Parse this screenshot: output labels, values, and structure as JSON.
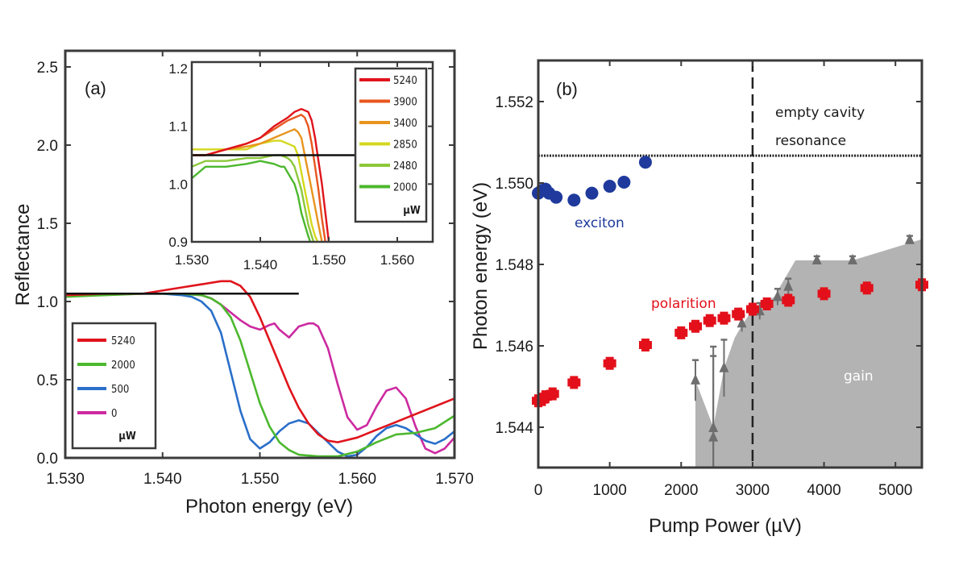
{
  "chart_data": [
    {
      "panel": "(a)",
      "type": "line",
      "title": "",
      "xlabel": "Photon energy (eV)",
      "ylabel": "Reflectance",
      "xlim": [
        1.53,
        1.57
      ],
      "ylim": [
        0.0,
        2.6
      ],
      "xticks": [
        "1.530",
        "1.540",
        "1.550",
        "1.560",
        "1.570"
      ],
      "yticks": [
        "0.0",
        "0.5",
        "1.0",
        "1.5",
        "2.0",
        "2.5"
      ],
      "reference_line": {
        "y": 1.05,
        "x": [
          1.53,
          1.554
        ],
        "color": "#111111"
      },
      "legend": {
        "placement": "bottom-left",
        "unit": "µW",
        "entries": [
          "5240",
          "2000",
          "500",
          "0"
        ]
      },
      "series": [
        {
          "name": "5240",
          "color": "#e0141c",
          "x": [
            1.53,
            1.534,
            1.538,
            1.54,
            1.542,
            1.544,
            1.546,
            1.547,
            1.548,
            1.549,
            1.55,
            1.551,
            1.552,
            1.553,
            1.554,
            1.555,
            1.556,
            1.557,
            1.558,
            1.56,
            1.562,
            1.564,
            1.566,
            1.568,
            1.57
          ],
          "y": [
            1.04,
            1.05,
            1.05,
            1.07,
            1.09,
            1.11,
            1.13,
            1.13,
            1.1,
            1.03,
            0.9,
            0.75,
            0.6,
            0.45,
            0.32,
            0.22,
            0.15,
            0.11,
            0.1,
            0.13,
            0.18,
            0.23,
            0.28,
            0.33,
            0.38
          ]
        },
        {
          "name": "2000",
          "color": "#4cb82e",
          "x": [
            1.53,
            1.534,
            1.538,
            1.54,
            1.542,
            1.544,
            1.545,
            1.546,
            1.547,
            1.548,
            1.549,
            1.55,
            1.551,
            1.552,
            1.553,
            1.554,
            1.556,
            1.558,
            1.56,
            1.562,
            1.564,
            1.566,
            1.568,
            1.57
          ],
          "y": [
            1.03,
            1.04,
            1.05,
            1.05,
            1.05,
            1.04,
            1.02,
            0.98,
            0.9,
            0.75,
            0.55,
            0.35,
            0.2,
            0.1,
            0.05,
            0.02,
            0.01,
            0.01,
            0.04,
            0.1,
            0.15,
            0.16,
            0.19,
            0.27
          ]
        },
        {
          "name": "500",
          "color": "#2a6fc9",
          "x": [
            1.53,
            1.534,
            1.538,
            1.54,
            1.542,
            1.543,
            1.544,
            1.545,
            1.546,
            1.547,
            1.548,
            1.549,
            1.55,
            1.551,
            1.552,
            1.553,
            1.554,
            1.555,
            1.556,
            1.557,
            1.558,
            1.559,
            1.56,
            1.561,
            1.562,
            1.563,
            1.564,
            1.565,
            1.566,
            1.567,
            1.568,
            1.569,
            1.57
          ],
          "y": [
            1.05,
            1.05,
            1.05,
            1.05,
            1.04,
            1.03,
            1.0,
            0.94,
            0.8,
            0.55,
            0.3,
            0.12,
            0.06,
            0.1,
            0.17,
            0.22,
            0.24,
            0.22,
            0.16,
            0.1,
            0.04,
            0.01,
            0.02,
            0.07,
            0.14,
            0.19,
            0.21,
            0.19,
            0.15,
            0.11,
            0.09,
            0.12,
            0.17
          ]
        },
        {
          "name": "0",
          "color": "#cc2aa0",
          "x": [
            1.53,
            1.534,
            1.538,
            1.54,
            1.542,
            1.544,
            1.545,
            1.546,
            1.547,
            1.548,
            1.549,
            1.55,
            1.551,
            1.5515,
            1.552,
            1.553,
            1.554,
            1.555,
            1.5555,
            1.556,
            1.557,
            1.558,
            1.559,
            1.56,
            1.561,
            1.562,
            1.563,
            1.564,
            1.565,
            1.566,
            1.567,
            1.568,
            1.569,
            1.57
          ],
          "y": [
            1.04,
            1.05,
            1.05,
            1.05,
            1.05,
            1.04,
            1.02,
            0.98,
            0.93,
            0.88,
            0.84,
            0.82,
            0.85,
            0.86,
            0.82,
            0.77,
            0.84,
            0.86,
            0.86,
            0.84,
            0.7,
            0.47,
            0.26,
            0.18,
            0.21,
            0.33,
            0.43,
            0.45,
            0.38,
            0.2,
            0.06,
            0.03,
            0.06,
            0.13
          ]
        }
      ],
      "inset": {
        "type": "line",
        "xlim": [
          1.53,
          1.5652
        ],
        "ylim": [
          0.9,
          1.2
        ],
        "xticks": [
          "1.530",
          "1.540",
          "1.550",
          "1.560"
        ],
        "yticks": [
          "0.9",
          "1.0",
          "1.1",
          "1.2"
        ],
        "reference_line": {
          "y": 1.05,
          "x": [
            1.53,
            1.5525
          ],
          "color": "#111111"
        },
        "legend": {
          "placement": "top-right",
          "unit": "µW",
          "entries": [
            "5240",
            "3900",
            "3400",
            "2850",
            "2480",
            "2000"
          ]
        },
        "series": [
          {
            "name": "5240",
            "color": "#e0141c",
            "x": [
              1.53,
              1.532,
              1.535,
              1.538,
              1.54,
              1.542,
              1.544,
              1.545,
              1.546,
              1.547,
              1.5475,
              1.548,
              1.5485,
              1.549,
              1.5495,
              1.55
            ],
            "y": [
              1.05,
              1.05,
              1.06,
              1.07,
              1.08,
              1.1,
              1.115,
              1.125,
              1.13,
              1.125,
              1.11,
              1.08,
              1.04,
              1.0,
              0.95,
              0.9
            ]
          },
          {
            "name": "3900",
            "color": "#e8561e",
            "x": [
              1.53,
              1.532,
              1.535,
              1.538,
              1.54,
              1.542,
              1.544,
              1.545,
              1.546,
              1.5465,
              1.547,
              1.5475,
              1.548,
              1.5485,
              1.549,
              1.5495
            ],
            "y": [
              1.05,
              1.05,
              1.06,
              1.07,
              1.08,
              1.095,
              1.11,
              1.115,
              1.12,
              1.115,
              1.1,
              1.07,
              1.03,
              0.99,
              0.94,
              0.9
            ]
          },
          {
            "name": "3400",
            "color": "#e8941e",
            "x": [
              1.53,
              1.532,
              1.535,
              1.538,
              1.54,
              1.542,
              1.544,
              1.545,
              1.5455,
              1.546,
              1.5465,
              1.547,
              1.5475,
              1.548,
              1.5485,
              1.549
            ],
            "y": [
              1.05,
              1.05,
              1.06,
              1.065,
              1.07,
              1.08,
              1.09,
              1.095,
              1.09,
              1.08,
              1.05,
              1.02,
              0.99,
              0.96,
              0.93,
              0.9
            ]
          },
          {
            "name": "2850",
            "color": "#d4d81e",
            "x": [
              1.53,
              1.532,
              1.535,
              1.538,
              1.54,
              1.542,
              1.543,
              1.544,
              1.545,
              1.5455,
              1.546,
              1.5465,
              1.547,
              1.5475,
              1.548,
              1.5484
            ],
            "y": [
              1.06,
              1.06,
              1.06,
              1.06,
              1.07,
              1.075,
              1.075,
              1.07,
              1.065,
              1.05,
              1.02,
              0.99,
              0.96,
              0.93,
              0.91,
              0.9
            ]
          },
          {
            "name": "2480",
            "color": "#8cc83a",
            "x": [
              1.53,
              1.532,
              1.535,
              1.538,
              1.54,
              1.542,
              1.543,
              1.544,
              1.5445,
              1.545,
              1.5455,
              1.546,
              1.5465,
              1.547,
              1.5475,
              1.5478
            ],
            "y": [
              1.03,
              1.04,
              1.04,
              1.045,
              1.045,
              1.05,
              1.05,
              1.045,
              1.04,
              1.03,
              1.01,
              0.99,
              0.96,
              0.93,
              0.91,
              0.9
            ]
          },
          {
            "name": "2000",
            "color": "#4cb82e",
            "x": [
              1.53,
              1.532,
              1.535,
              1.538,
              1.54,
              1.542,
              1.543,
              1.5435,
              1.544,
              1.5445,
              1.545,
              1.5455,
              1.546,
              1.5465,
              1.547,
              1.5473
            ],
            "y": [
              1.01,
              1.03,
              1.03,
              1.035,
              1.04,
              1.035,
              1.03,
              1.03,
              1.02,
              1.01,
              1.0,
              0.98,
              0.95,
              0.93,
              0.91,
              0.9
            ]
          }
        ]
      }
    },
    {
      "panel": "(b)",
      "type": "scatter",
      "title": "",
      "xlabel": "Pump Power (µV)",
      "ylabel": "Photon energy (eV)",
      "xlim": [
        0,
        5370
      ],
      "ylim": [
        1.543,
        1.553
      ],
      "xticks": [
        "0",
        "1000",
        "2000",
        "3000",
        "4000",
        "5000"
      ],
      "yticks": [
        "1.544",
        "1.546",
        "1.548",
        "1.550",
        "1.552"
      ],
      "annotations": {
        "empty_cavity": "empty cavity\nresonance",
        "empty_cavity_line1": "empty cavity",
        "empty_cavity_line2": "resonance",
        "exciton": "exciton",
        "polariton": "polarition",
        "gain": "gain"
      },
      "empty_cavity_resonance": 1.55067,
      "threshold_dashed_x": 3000,
      "series": [
        {
          "name": "exciton",
          "color": "#1f3a9c",
          "marker": "circle",
          "x": [
            0,
            50,
            100,
            150,
            250,
            500,
            750,
            1000,
            1200,
            1500
          ],
          "y": [
            1.54975,
            1.54982,
            1.54985,
            1.54975,
            1.54965,
            1.54958,
            1.54975,
            1.54992,
            1.55002,
            1.55051
          ]
        },
        {
          "name": "polariton",
          "color": "#e3101b",
          "marker": "plus",
          "x": [
            0,
            50,
            100,
            200,
            500,
            1000,
            1500,
            2000,
            2200,
            2400,
            2600,
            2800,
            3000,
            3200,
            3500,
            4000,
            4600,
            5370
          ],
          "y": [
            1.54465,
            1.54468,
            1.54475,
            1.54482,
            1.5451,
            1.54557,
            1.54602,
            1.54632,
            1.54648,
            1.54662,
            1.54668,
            1.54678,
            1.5469,
            1.54703,
            1.54712,
            1.54728,
            1.54742,
            1.5475
          ]
        },
        {
          "name": "gain-threshold",
          "color": "#6e6e6e",
          "marker": "triangle",
          "x": [
            2200,
            2450,
            2450,
            2600,
            2850,
            3100,
            3350,
            3500,
            3900,
            4400,
            5200
          ],
          "y": [
            1.54515,
            1.54398,
            1.54375,
            1.54545,
            1.54655,
            1.54685,
            1.5472,
            1.54745,
            1.5481,
            1.5481,
            1.5486
          ],
          "err": [
            0.0005,
            0.002,
            0.002,
            0.0007,
            0.0002,
            0.0002,
            0.0002,
            0.0002,
            0.0001,
            0.0001,
            0.0001
          ]
        }
      ],
      "gain_region": {
        "color": "#b3b3b3",
        "x": [
          2200,
          2200,
          2450,
          2600,
          2750,
          2850,
          3000,
          3300,
          3600,
          4400,
          5370
        ],
        "y": [
          1.543,
          1.54515,
          1.544,
          1.54545,
          1.5462,
          1.5465,
          1.5469,
          1.5472,
          1.5481,
          1.5481,
          1.54862
        ]
      }
    }
  ]
}
